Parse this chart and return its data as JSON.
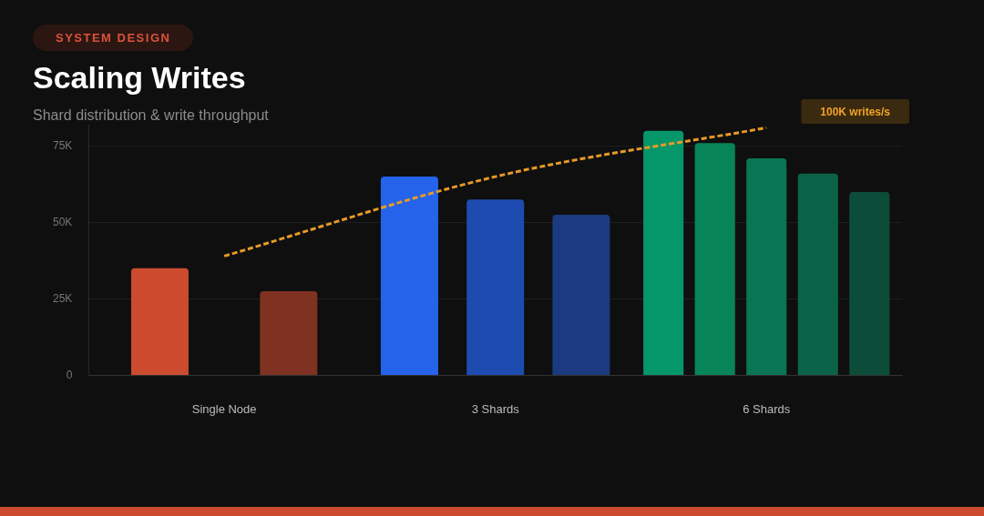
{
  "chart_data": {
    "type": "bar",
    "title": "Scaling Writes",
    "subtitle": "Shard distribution & write throughput",
    "annotations": [
      "SYSTEM DESIGN",
      "100K writes/s"
    ],
    "categories": [
      "Single Node",
      "3 Shards",
      "6 Shards"
    ],
    "series": [
      {
        "colors": [
          "#cc4b2e",
          "#2563eb",
          "#059669"
        ],
        "values": [
          35000,
          65000,
          80000
        ]
      },
      {
        "colors": [
          "#7f3122",
          "#1e4bb0",
          "#078559"
        ],
        "values": [
          27500,
          57500,
          76000
        ]
      },
      {
        "colors": [
          null,
          "#1c3a80",
          "#0a7552"
        ],
        "values": [
          null,
          52500,
          71000
        ]
      },
      {
        "colors": [
          null,
          null,
          "#0b6347"
        ],
        "values": [
          null,
          null,
          66000
        ]
      },
      {
        "colors": [
          null,
          null,
          "#0b4d38"
        ],
        "values": [
          null,
          null,
          60000
        ]
      },
      {
        "type": "line",
        "color": "#e89a26",
        "line_style": "dashed",
        "marker": "none",
        "values": [
          39000,
          65000,
          81000
        ]
      }
    ],
    "ylim": [
      0,
      82000
    ],
    "yticks": [
      {
        "value": 0,
        "label": "0"
      },
      {
        "value": 25000,
        "label": "25K"
      },
      {
        "value": 50000,
        "label": "50K"
      },
      {
        "value": 75000,
        "label": "75K"
      }
    ],
    "grid": "y",
    "legend": false
  }
}
